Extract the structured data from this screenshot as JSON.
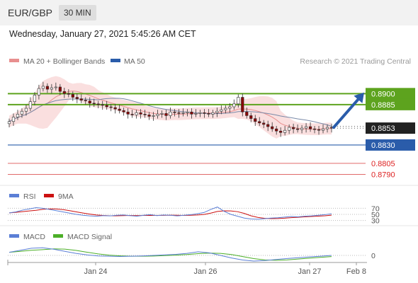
{
  "header": {
    "pair": "EUR/GBP",
    "timeframe": "30 MIN",
    "datetime": "Wednesday, January 27, 2021 5:45:26 AM CET"
  },
  "legend": {
    "ma20": "MA 20 + Bollinger Bands",
    "ma50": "MA 50",
    "copyright": "Research © 2021 Trading Central"
  },
  "colors": {
    "up_candle": "#ffffff",
    "down_candle": "#8b0000",
    "bollinger_fill": "#f9d9d9",
    "ma20": "#e88f8f",
    "ma50": "#7a8aa8",
    "resistance": "#5da31e",
    "pivot": "#2a5caa",
    "support": "#e06a6a",
    "forecast_arrow": "#2a5caa",
    "rsi": "#5b7fd6",
    "rsi_ma": "#cc1111",
    "macd": "#5b7fd6",
    "macd_signal": "#4caf28"
  },
  "chart_data": {
    "type": "candlestick",
    "instrument": "EUR/GBP",
    "timeframe": "30 MIN",
    "price_axis_min": 0.8775,
    "price_axis_max": 0.8935,
    "x_axis_labels": [
      "Jan 24",
      "Jan 26",
      "Jan 27",
      "Feb 8"
    ],
    "current_price": 0.8853,
    "levels": [
      {
        "value": 0.89,
        "kind": "resistance",
        "label": "0.8900"
      },
      {
        "value": 0.8885,
        "kind": "resistance",
        "label": "0.8885"
      },
      {
        "value": 0.8853,
        "kind": "current",
        "label": "0.8853"
      },
      {
        "value": 0.883,
        "kind": "pivot",
        "label": "0.8830"
      },
      {
        "value": 0.8805,
        "kind": "support",
        "label": "0.8805"
      },
      {
        "value": 0.879,
        "kind": "support",
        "label": "0.8790"
      }
    ],
    "forecast_target": 0.89,
    "close": [
      0.8862,
      0.8868,
      0.8872,
      0.8876,
      0.888,
      0.8889,
      0.8898,
      0.8907,
      0.891,
      0.8906,
      0.8908,
      0.8909,
      0.8903,
      0.89,
      0.8899,
      0.8895,
      0.8893,
      0.8891,
      0.889,
      0.8887,
      0.8886,
      0.8885,
      0.8884,
      0.8882,
      0.8881,
      0.8879,
      0.8877,
      0.8875,
      0.8872,
      0.8871,
      0.8874,
      0.8872,
      0.8871,
      0.8869,
      0.887,
      0.8872,
      0.8873,
      0.887,
      0.8875,
      0.8874,
      0.8873,
      0.8874,
      0.8875,
      0.8872,
      0.8873,
      0.8874,
      0.8873,
      0.8872,
      0.8874,
      0.8876,
      0.8878,
      0.888,
      0.8882,
      0.8886,
      0.8895,
      0.8875,
      0.887,
      0.8866,
      0.8862,
      0.886,
      0.8858,
      0.8855,
      0.8852,
      0.8849,
      0.8847,
      0.885,
      0.8854,
      0.8852,
      0.8851,
      0.8853,
      0.8855,
      0.8852,
      0.8851,
      0.885,
      0.8852,
      0.8854,
      0.8853
    ],
    "rsi": {
      "name": "RSI",
      "ma_name": "9MA",
      "levels": [
        70,
        50,
        30
      ],
      "values": [
        55,
        58,
        64,
        68,
        72,
        70,
        66,
        62,
        58,
        54,
        50,
        47,
        45,
        44,
        46,
        45,
        47,
        48,
        46,
        44,
        47,
        49,
        46,
        48,
        47,
        45,
        47,
        49,
        52,
        56,
        66,
        74,
        60,
        50,
        44,
        38,
        35,
        34,
        36,
        38,
        39,
        41,
        43,
        42,
        44,
        45,
        47,
        49,
        52
      ]
    },
    "macd": {
      "name": "MACD",
      "signal_name": "MACD Signal",
      "zero_label": "0",
      "values": [
        0.0003,
        0.0005,
        0.0007,
        0.00075,
        0.0006,
        0.0004,
        0.0002,
        5e-05,
        -5e-05,
        -8e-05,
        -0.0001,
        -8e-05,
        -5e-05,
        0.0,
        5e-05,
        0.0001,
        0.0002,
        0.00035,
        0.00025,
        0.0,
        -0.00025,
        -0.00045,
        -0.00055,
        -0.0005,
        -0.0004,
        -0.0003,
        -0.00022,
        -0.00015,
        -8e-05,
        0.0
      ]
    }
  }
}
